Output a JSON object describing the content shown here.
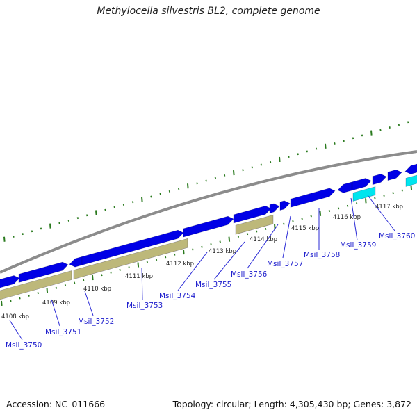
{
  "title": "Methylocella silvestris BL2, complete genome",
  "footer": {
    "accession": "Accession: NC_011666",
    "summary": "Topology: circular; Length: 4,305,430 bp; Genes: 3,872"
  },
  "colors": {
    "backbone": "#8c8c8c",
    "gene_forward": "#0000e6",
    "gene_reverse": "#bdb87a",
    "gene_other": "#00e5ee",
    "tick": "#2a7a1e",
    "label_line": "#2a2ad6"
  },
  "scale_labels": [
    "4108 kbp",
    "4109 kbp",
    "4110 kbp",
    "4111 kbp",
    "4112 kbp",
    "4113 kbp",
    "4114 kbp",
    "4115 kbp",
    "4116 kbp",
    "4117 kbp"
  ],
  "gene_labels": [
    "Msil_3750",
    "Msil_3751",
    "Msil_3752",
    "Msil_3753",
    "Msil_3754",
    "Msil_3755",
    "Msil_3756",
    "Msil_3757",
    "Msil_3758",
    "Msil_3759",
    "Msil_3760"
  ]
}
